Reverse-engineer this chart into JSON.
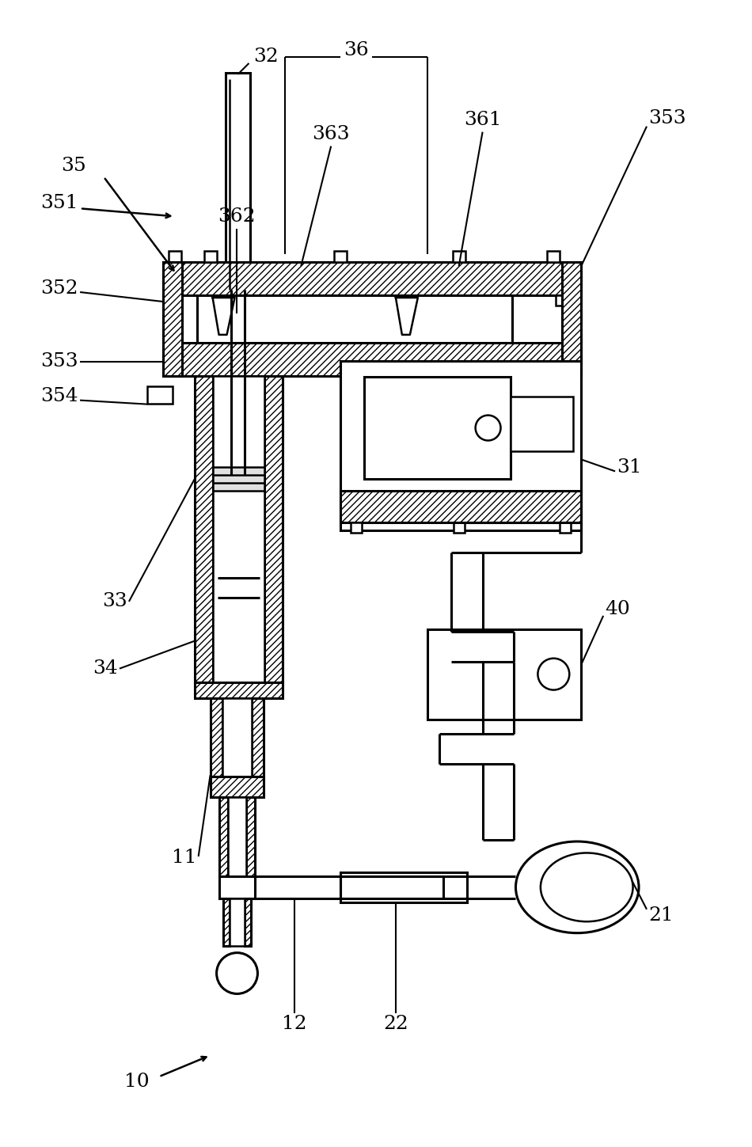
{
  "bg_color": "#ffffff",
  "line_color": "#000000",
  "lw": 1.8,
  "lw_thick": 2.2
}
